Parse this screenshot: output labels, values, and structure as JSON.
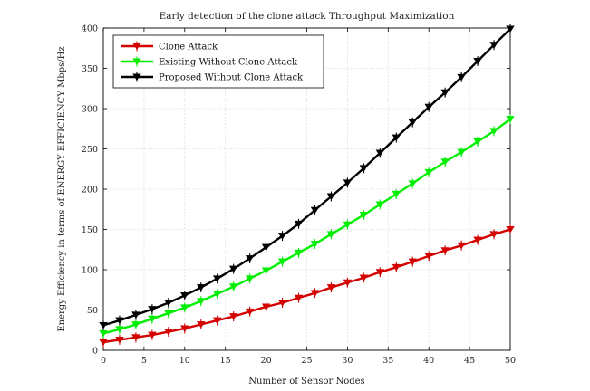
{
  "chart_data": {
    "type": "line",
    "title": "Early detection of the clone attack Throughput Maximization",
    "xlabel": "Number of Sensor Nodes",
    "ylabel": "Energy Efficiency in terms of ENERGY EFFICIENCY Mbps/Hz",
    "xlim": [
      0,
      50
    ],
    "ylim": [
      0,
      400
    ],
    "xticks": [
      0,
      5,
      10,
      15,
      20,
      25,
      30,
      35,
      40,
      45,
      50
    ],
    "yticks": [
      0,
      50,
      100,
      150,
      200,
      250,
      300,
      350,
      400
    ],
    "grid": true,
    "legend_position": "top-left",
    "x": [
      0,
      2,
      4,
      6,
      8,
      10,
      12,
      14,
      16,
      18,
      20,
      22,
      24,
      26,
      28,
      30,
      32,
      34,
      36,
      38,
      40,
      42,
      44,
      46,
      48,
      50
    ],
    "series": [
      {
        "name": "Clone Attack",
        "color": "#d40000",
        "values": [
          10,
          13,
          16,
          19,
          23,
          27,
          32,
          37,
          42,
          48,
          54,
          59,
          65,
          71,
          78,
          84,
          90,
          97,
          103,
          110,
          117,
          124,
          130,
          137,
          144,
          150
        ]
      },
      {
        "name": "Existing Without Clone Attack",
        "color": "#00ee00",
        "values": [
          21,
          26,
          32,
          39,
          46,
          53,
          61,
          70,
          79,
          89,
          99,
          110,
          121,
          132,
          144,
          156,
          168,
          181,
          194,
          207,
          221,
          234,
          246,
          259,
          272,
          287
        ]
      },
      {
        "name": "Proposed Without Clone Attack",
        "color": "#000000",
        "values": [
          31,
          37,
          44,
          51,
          59,
          68,
          78,
          89,
          101,
          114,
          128,
          142,
          157,
          174,
          191,
          208,
          226,
          245,
          264,
          283,
          302,
          320,
          339,
          359,
          379,
          399
        ]
      }
    ]
  }
}
